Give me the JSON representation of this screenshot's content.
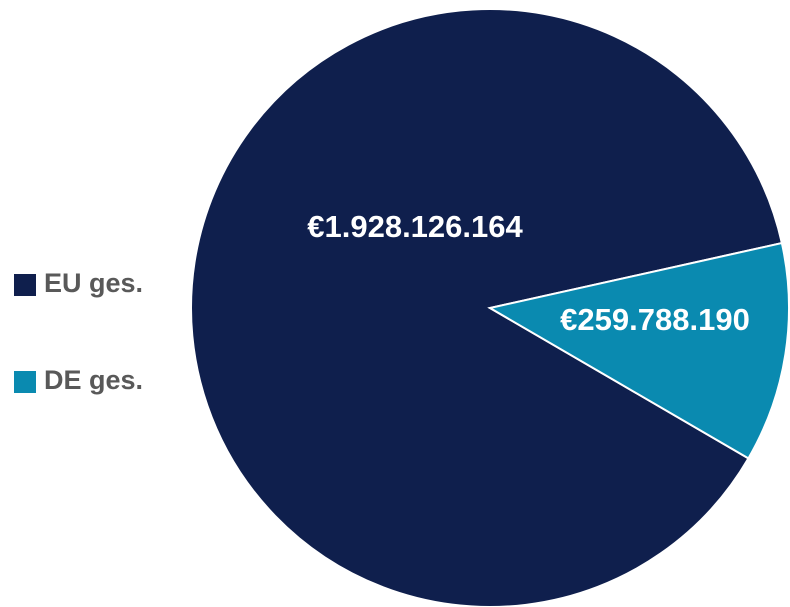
{
  "chart_data": {
    "type": "pie",
    "categories": [
      "EU ges.",
      "DE ges."
    ],
    "values": [
      1928126164,
      259788190
    ],
    "value_labels": [
      "€1.928.126.164",
      "€259.788.190"
    ],
    "colors": [
      "#0f1f4d",
      "#0a8ab0"
    ],
    "legend": "left"
  }
}
